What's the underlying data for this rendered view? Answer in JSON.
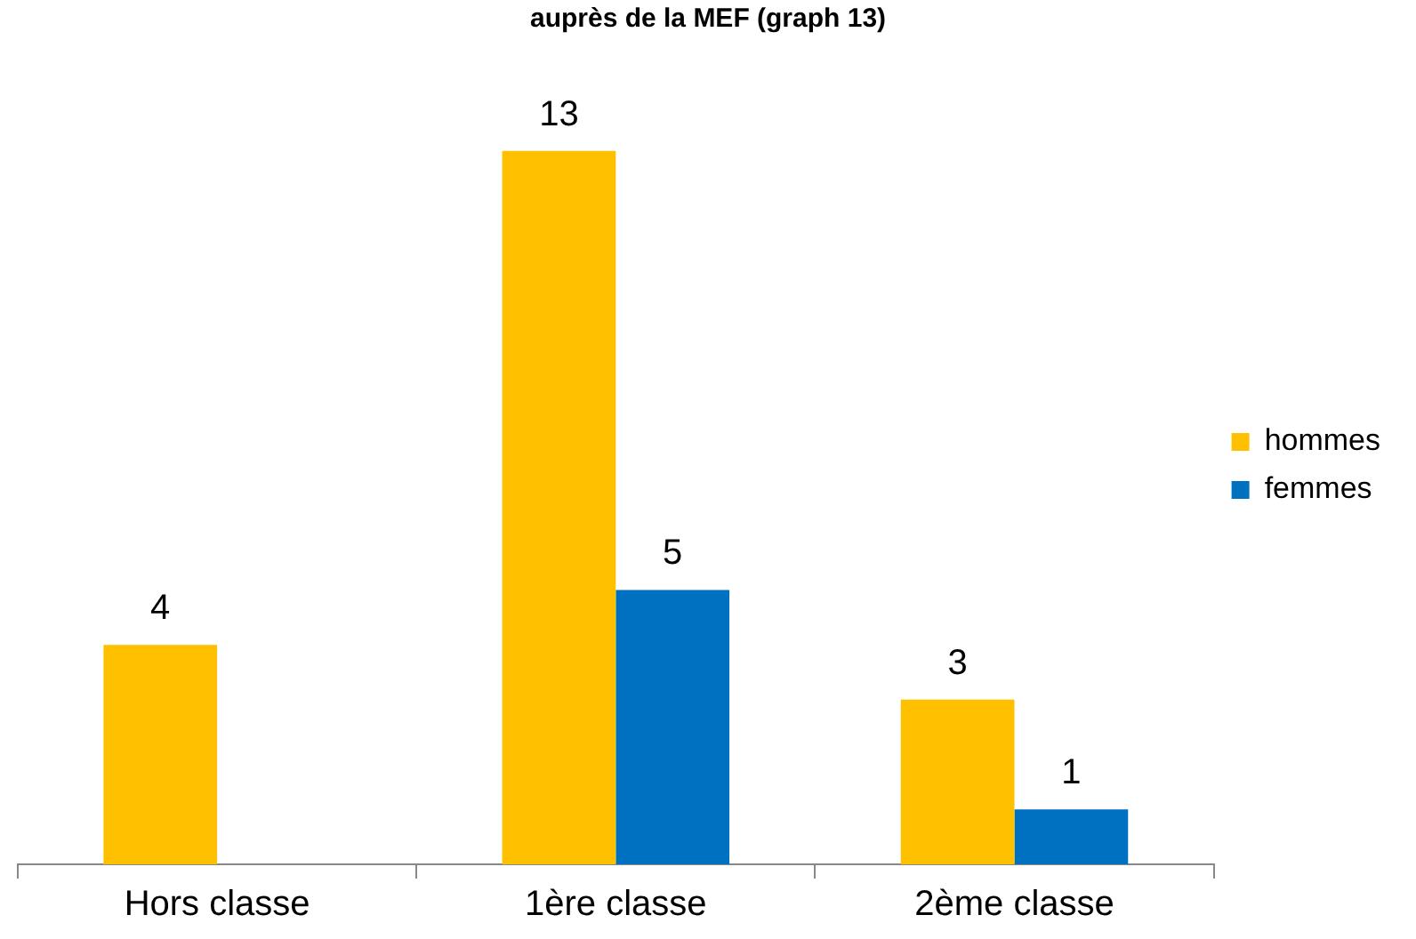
{
  "chart_data": {
    "type": "bar",
    "title": "auprès de la MEF (graph 13)",
    "categories": [
      "Hors classe",
      "1ère classe",
      "2ème classe"
    ],
    "series": [
      {
        "name": "hommes",
        "color": "#ffc000",
        "values": [
          4,
          13,
          3
        ]
      },
      {
        "name": "femmes",
        "color": "#0070c0",
        "values": [
          null,
          5,
          1
        ]
      }
    ],
    "data_labels": true,
    "legend": "right",
    "grid": false
  }
}
